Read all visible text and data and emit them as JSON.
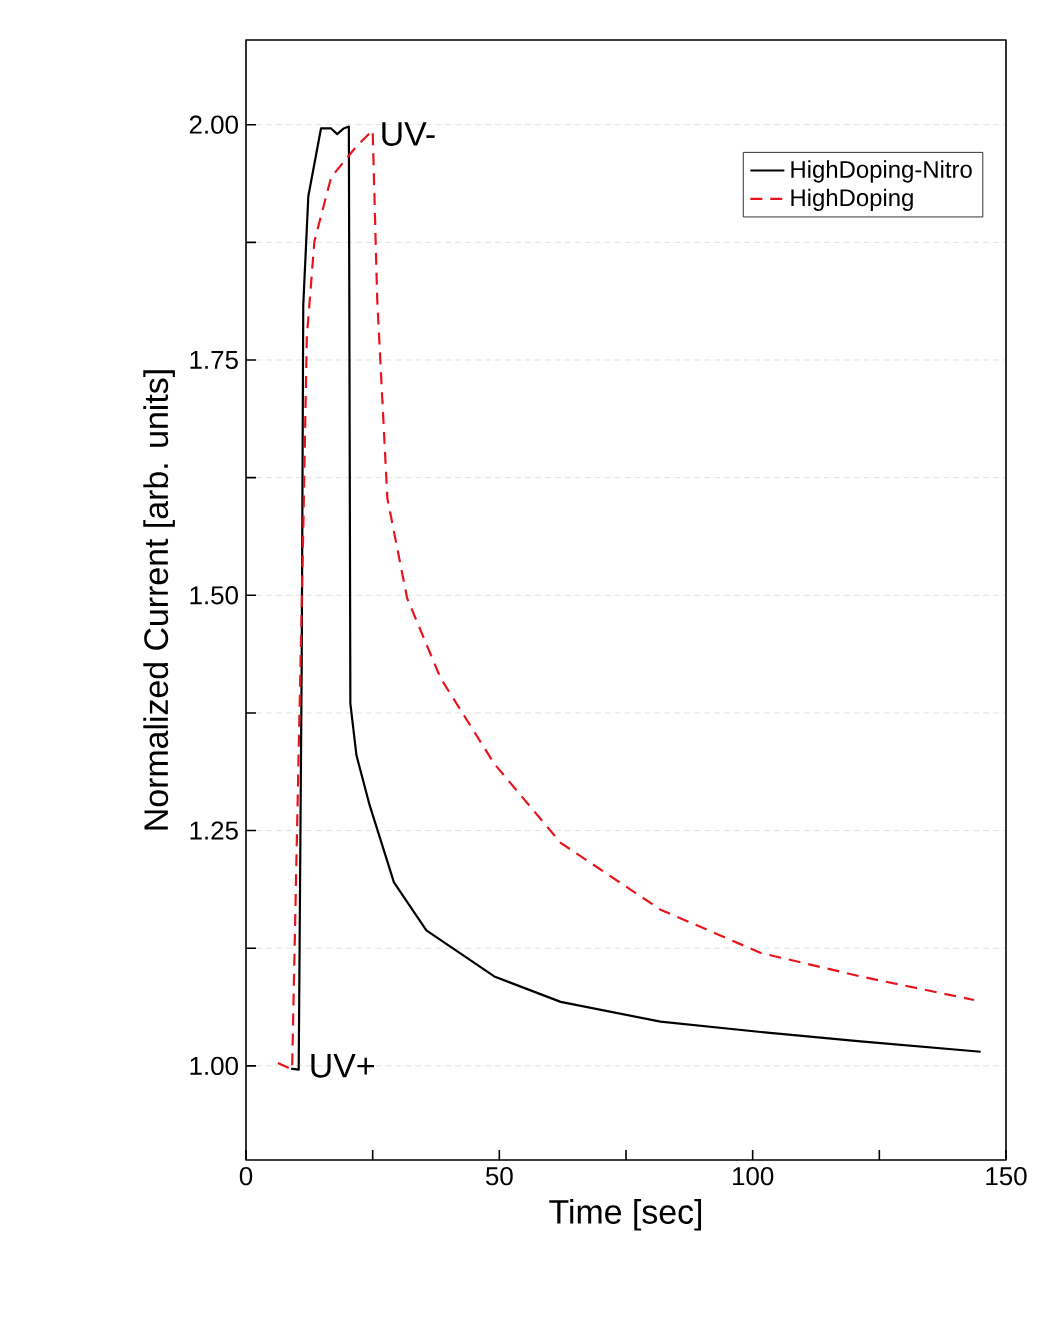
{
  "chart_data": {
    "type": "line",
    "xlabel": "Time [sec]",
    "ylabel": "Normalized Current [arb. units]",
    "xlim": [
      0,
      150
    ],
    "ylim": [
      0.9,
      2.09
    ],
    "xticks": [
      0,
      {
        "value": 25,
        "label": null
      },
      50,
      {
        "value": 75,
        "label": null
      },
      100,
      {
        "value": 125,
        "label": null
      },
      150
    ],
    "yticks": [
      {
        "value": 1.0,
        "label": "1.00"
      },
      {
        "value": 1.125,
        "label": null
      },
      {
        "value": 1.25,
        "label": "1.25"
      },
      {
        "value": 1.375,
        "label": null
      },
      {
        "value": 1.5,
        "label": "1.50"
      },
      {
        "value": 1.625,
        "label": null
      },
      {
        "value": 1.75,
        "label": "1.75"
      },
      {
        "value": 1.875,
        "label": null
      },
      {
        "value": 2.0,
        "label": "2.00"
      }
    ],
    "grid": "y",
    "legend": "top right",
    "annotations": [
      {
        "text": "UV-",
        "x": 25,
        "y": 1.99
      },
      {
        "text": "UV+",
        "x": 11,
        "y": 1.0
      }
    ],
    "series": [
      {
        "name": "HighDoping-Nitro",
        "color": "#000000",
        "line_style": "solid",
        "x": [
          8.9,
          10.4,
          11.0,
          11.3,
          12.3,
          14.8,
          16.8,
          18.0,
          19.3,
          20.3,
          20.6,
          21.8,
          24.4,
          29.2,
          35.6,
          49,
          62.1,
          81.8,
          101.6,
          121.3,
          145
        ],
        "values": [
          0.997,
          0.996,
          1.433,
          1.808,
          1.924,
          1.996,
          1.996,
          1.99,
          1.996,
          1.998,
          1.385,
          1.33,
          1.277,
          1.195,
          1.144,
          1.095,
          1.068,
          1.047,
          1.036,
          1.026,
          1.015
        ]
      },
      {
        "name": "HighDoping",
        "color": "#e8141c",
        "line_style": "dashed",
        "x": [
          6.3,
          9.1,
          11.3,
          12.0,
          13.5,
          16.8,
          21.8,
          25.0,
          25.9,
          27.9,
          31.8,
          38.4,
          49,
          62.1,
          81.8,
          101.6,
          121.3,
          143.7
        ],
        "values": [
          1.003,
          0.996,
          1.569,
          1.774,
          1.876,
          1.944,
          1.977,
          1.994,
          1.814,
          1.603,
          1.497,
          1.412,
          1.321,
          1.237,
          1.166,
          1.12,
          1.095,
          1.07
        ]
      }
    ]
  }
}
